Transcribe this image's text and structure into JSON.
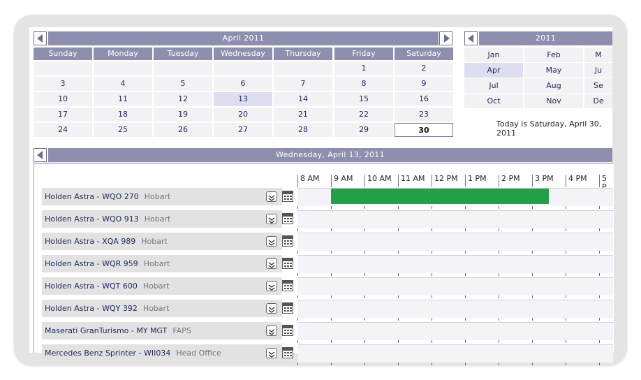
{
  "month_calendar": {
    "title": "April 2011",
    "day_headers": [
      "Sunday",
      "Monday",
      "Tuesday",
      "Wednesday",
      "Thursday",
      "Friday",
      "Saturday"
    ],
    "weeks": [
      [
        "",
        "",
        "",
        "",
        "",
        "1",
        "2"
      ],
      [
        "3",
        "4",
        "5",
        "6",
        "7",
        "8",
        "9"
      ],
      [
        "10",
        "11",
        "12",
        "13",
        "14",
        "15",
        "16"
      ],
      [
        "17",
        "18",
        "19",
        "20",
        "21",
        "22",
        "23"
      ],
      [
        "24",
        "25",
        "26",
        "27",
        "28",
        "29",
        "30"
      ]
    ],
    "selected_day": "13",
    "today_day": "30"
  },
  "year_calendar": {
    "title": "2011",
    "months": [
      [
        "Jan",
        "Feb",
        "M"
      ],
      [
        "Apr",
        "May",
        "Ju"
      ],
      [
        "Jul",
        "Aug",
        "Se"
      ],
      [
        "Oct",
        "Nov",
        "De"
      ]
    ],
    "selected_month": "Apr"
  },
  "today_text": "Today is Saturday, April 30, 2011",
  "schedule": {
    "date_title": "Wednesday, April 13, 2011",
    "time_labels": [
      "8 AM",
      "9 AM",
      "10 AM",
      "11 AM",
      "12 PM",
      "1 PM",
      "2 PM",
      "3 PM",
      "4 PM",
      "5 P"
    ],
    "resources": [
      {
        "name": "Holden Astra - WQO 270",
        "location": "Hobart"
      },
      {
        "name": "Holden Astra - WQO 913",
        "location": "Hobart"
      },
      {
        "name": "Holden Astra - XQA 989",
        "location": "Hobart"
      },
      {
        "name": "Holden Astra - WQR 959",
        "location": "Hobart"
      },
      {
        "name": "Holden Astra - WQT 600",
        "location": "Hobart"
      },
      {
        "name": "Holden Astra - WQY 392",
        "location": "Hobart"
      },
      {
        "name": "Maserati GranTurismo - MY MGT",
        "location": "FAPS"
      },
      {
        "name": "Mercedes Benz Sprinter - WII034",
        "location": "Head Office"
      }
    ],
    "event": {
      "resource_index": 0,
      "start_hour": 9,
      "end_hour": 15.5,
      "color": "#259e48"
    }
  }
}
